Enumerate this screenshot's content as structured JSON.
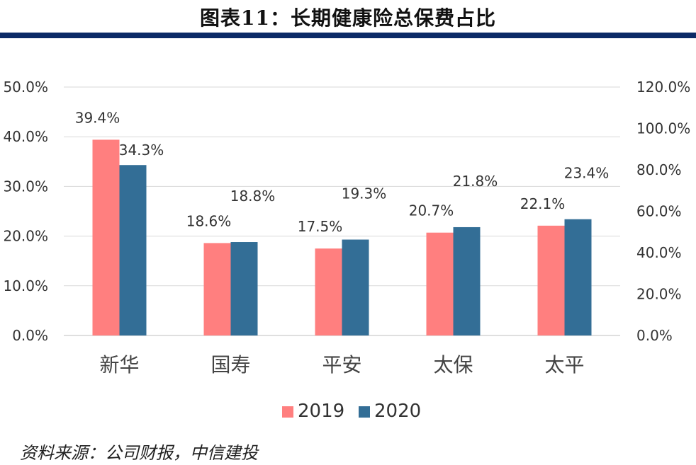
{
  "header": {
    "title": "图表11：长期健康险总保费占比"
  },
  "chart_data": {
    "type": "bar",
    "title": "图表11：长期健康险总保费占比",
    "categories": [
      "新华",
      "国寿",
      "平安",
      "太保",
      "太平"
    ],
    "series": [
      {
        "name": "2019",
        "values": [
          39.4,
          18.6,
          17.5,
          20.7,
          22.1
        ],
        "labels": [
          "39.4%",
          "18.6%",
          "17.5%",
          "20.7%",
          "22.1%"
        ],
        "color": "#ff7f7f"
      },
      {
        "name": "2020",
        "values": [
          34.3,
          18.8,
          19.3,
          21.8,
          23.4
        ],
        "labels": [
          "34.3%",
          "18.8%",
          "19.3%",
          "21.8%",
          "23.4%"
        ],
        "color": "#336e96"
      }
    ],
    "ylim": [
      0,
      50
    ],
    "y_ticks": [
      "0.0%",
      "10.0%",
      "20.0%",
      "30.0%",
      "40.0%",
      "50.0%"
    ],
    "y2lim": [
      0,
      120
    ],
    "y2_ticks": [
      "0.0%",
      "20.0%",
      "40.0%",
      "60.0%",
      "80.0%",
      "100.0%",
      "120.0%"
    ],
    "grid": true,
    "legend_position": "bottom",
    "xlabel": "",
    "ylabel": ""
  },
  "footer": {
    "source": "资料来源：公司财报，中信建投"
  }
}
